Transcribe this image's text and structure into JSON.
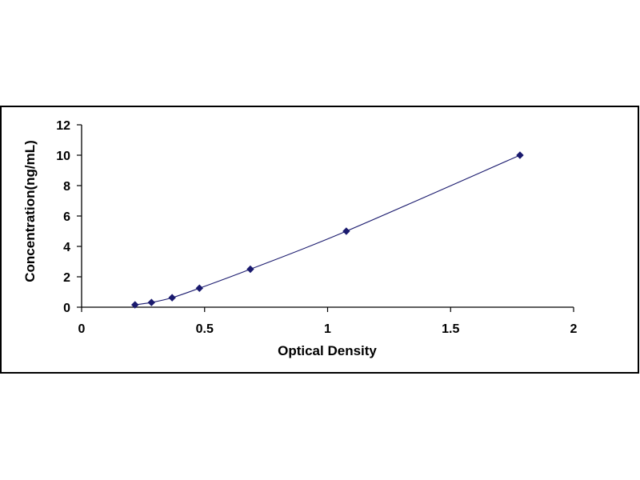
{
  "chart_data": {
    "type": "scatter",
    "title": "",
    "xlabel": "Optical Density",
    "ylabel": "Concentration(ng/mL)",
    "xlim": [
      0,
      2
    ],
    "ylim": [
      0,
      12
    ],
    "xticks": [
      0,
      0.5,
      1,
      1.5,
      2
    ],
    "xtick_labels": [
      "0",
      "0.5",
      "1",
      "1.5",
      "2"
    ],
    "yticks": [
      0,
      2,
      4,
      6,
      8,
      10,
      12
    ],
    "ytick_labels": [
      "0",
      "2",
      "4",
      "6",
      "8",
      "10",
      "12"
    ],
    "grid": false,
    "legend": "none",
    "trendline": "smooth curve through points",
    "series": [
      {
        "x": [
          0.217,
          0.284,
          0.368,
          0.479,
          0.686,
          1.076,
          1.782
        ],
        "y": [
          0.156,
          0.312,
          0.625,
          1.25,
          2.5,
          5,
          10
        ],
        "color": "#1a1a6e"
      }
    ]
  }
}
